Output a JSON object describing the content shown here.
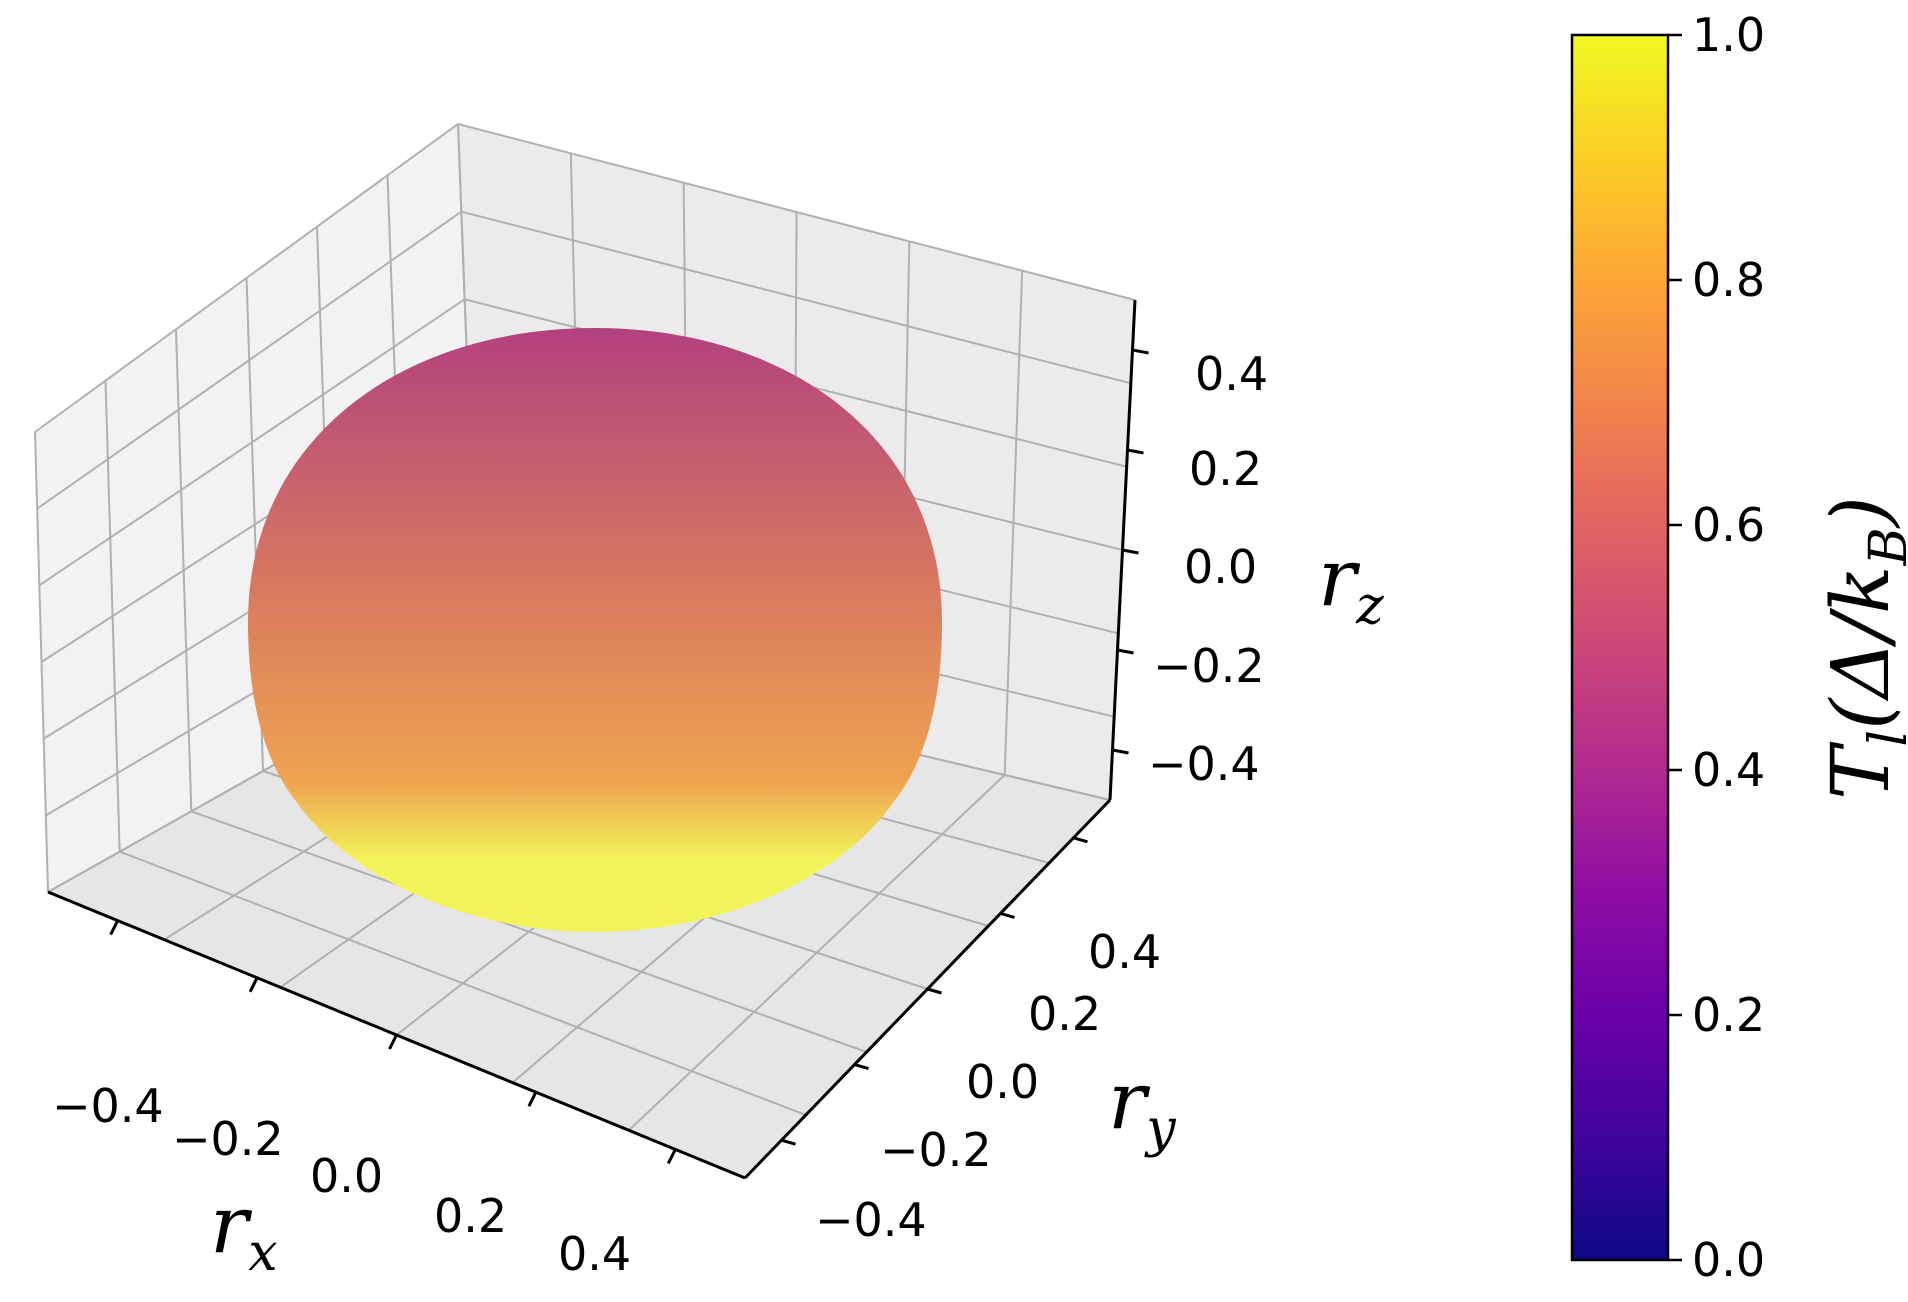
{
  "chart_data": {
    "type": "surface3d",
    "shape": "sphere",
    "center": {
      "rx": 0.0,
      "ry": 0.0,
      "rz": 0.0
    },
    "radius": 0.5,
    "axes": {
      "x": {
        "label_main": "r",
        "label_sub": "x",
        "ticks": [
          -0.4,
          -0.2,
          0.0,
          0.2,
          0.4
        ],
        "tick_labels": [
          "−0.4",
          "−0.2",
          "0.0",
          "0.2",
          "0.4"
        ]
      },
      "y": {
        "label_main": "r",
        "label_sub": "y",
        "ticks": [
          -0.4,
          -0.2,
          0.0,
          0.2,
          0.4
        ],
        "tick_labels": [
          "−0.4",
          "−0.2",
          "0.0",
          "0.2",
          "0.4"
        ]
      },
      "z": {
        "label_main": "r",
        "label_sub": "z",
        "ticks": [
          -0.4,
          -0.2,
          0.0,
          0.2,
          0.4
        ],
        "tick_labels": [
          "−0.4",
          "−0.2",
          "0.0",
          "0.2",
          "0.4"
        ]
      }
    },
    "colorbar": {
      "colormap": "plasma",
      "range": [
        0.0,
        1.0
      ],
      "ticks": [
        0.0,
        0.2,
        0.4,
        0.6,
        0.8,
        1.0
      ],
      "tick_labels": [
        "0.0",
        "0.2",
        "0.4",
        "0.6",
        "0.8",
        "1.0"
      ],
      "label_main": "T",
      "label_sub_1": "l",
      "label_paren_open": "(Δ/",
      "label_k": "k",
      "label_sub_2": "B",
      "label_paren_close": ")"
    },
    "surface_color_by_height": [
      {
        "rz": 0.5,
        "value": 0.45
      },
      {
        "rz": 0.25,
        "value": 0.58
      },
      {
        "rz": 0.0,
        "value": 0.72
      },
      {
        "rz": -0.25,
        "value": 0.86
      },
      {
        "rz": -0.5,
        "value": 1.0
      }
    ],
    "grid": true
  },
  "colors": {
    "pane_left": "#f2f2f2",
    "pane_back": "#ebebeb",
    "pane_floor": "#e6e6e6",
    "grid": "#b0b0b0",
    "axis": "#000000",
    "sphere_top": "#b2417f",
    "sphere_mid": "#da7c5e",
    "sphere_low": "#efa350",
    "sphere_bottom": "#f2f45a",
    "cmap": [
      "#0d0887",
      "#41049d",
      "#6a00a8",
      "#8f0da4",
      "#b12a90",
      "#cc4778",
      "#e16462",
      "#f2844b",
      "#fca636",
      "#fcce25",
      "#f0f921"
    ]
  }
}
